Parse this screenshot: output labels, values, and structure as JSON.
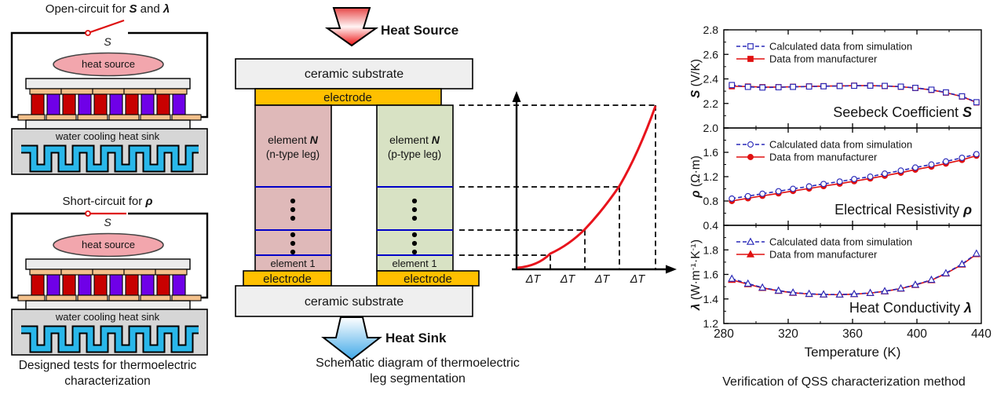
{
  "left_panel": {
    "test1_title": [
      "Open-circuit for ",
      "S",
      " and ",
      "λ"
    ],
    "test2_title": [
      "Short-circuit for ",
      "ρ"
    ],
    "switch_label": "S",
    "heat_source_label": "heat source",
    "heat_sink_label": "water cooling heat sink",
    "caption": [
      "Designed tests for thermoelectric",
      "characterization"
    ]
  },
  "middle_panel": {
    "heat_source_label": "Heat Source",
    "heat_sink_label": "Heat Sink",
    "ceramic_label": "ceramic substrate",
    "electrode_label": "electrode",
    "n_leg_label": [
      "element ",
      "N"
    ],
    "n_leg_sublabel": "(n-type leg)",
    "p_leg_label": [
      "element ",
      "N"
    ],
    "p_leg_sublabel": "(p-type leg)",
    "element1_label": "element 1",
    "delta_t_label": "ΔT",
    "caption": [
      "Schematic diagram of thermoelectric",
      "leg segmentation"
    ]
  },
  "right_panel": {
    "caption": "Verification of QSS characterization method",
    "ylabel_s": [
      "S",
      " (V/K)"
    ],
    "ylabel_rho": [
      "ρ",
      " (Ω·m)"
    ],
    "ylabel_lambda": [
      "λ",
      " (W·m",
      "-1",
      "·K",
      "-1",
      ")"
    ]
  },
  "colors": {
    "simulation_line": "#2929b8",
    "manufacturer_line": "#e01010",
    "electrode": "#ffc000",
    "n_leg": "#dfb9b9",
    "p_leg": "#d8e2c4",
    "segment_divider": "#0000c8",
    "te_red": "#c80000",
    "te_purple": "#6f00e8",
    "coolant": "#29b7ea",
    "heat_arrow": "#ee2222",
    "sink_arrow": "#3fa8e8",
    "profile_curve": "#e8131c"
  },
  "chart_data": [
    {
      "type": "line",
      "title": "Seebeck Coefficient S",
      "ylabel": "S (V/K)",
      "xlabel": "Temperature (K)",
      "xlim": [
        280,
        440
      ],
      "ylim": [
        2.0,
        2.8
      ],
      "xticks": [
        280,
        320,
        360,
        400,
        440
      ],
      "yticks": [
        2.0,
        2.2,
        2.4,
        2.6,
        2.8
      ],
      "grid": false,
      "legend_position": "top-left",
      "annotation": {
        "text": "Seebeck Coefficient ",
        "symbol": "S"
      },
      "x": [
        285,
        295,
        304,
        314,
        323,
        333,
        342,
        352,
        361,
        371,
        380,
        390,
        399,
        409,
        418,
        428,
        437
      ],
      "series": [
        {
          "name": "Calculated data from simulation",
          "color": "#2929b8",
          "style": "dashed",
          "marker": "square",
          "marker_fill": "open",
          "values": [
            2.35,
            2.335,
            2.33,
            2.332,
            2.335,
            2.338,
            2.34,
            2.342,
            2.344,
            2.345,
            2.343,
            2.337,
            2.327,
            2.312,
            2.29,
            2.258,
            2.21
          ]
        },
        {
          "name": "Data from manufacturer",
          "color": "#e01010",
          "style": "solid",
          "marker": "square",
          "marker_fill": "filled",
          "values": [
            2.34,
            2.338,
            2.333,
            2.333,
            2.336,
            2.339,
            2.341,
            2.343,
            2.345,
            2.345,
            2.342,
            2.336,
            2.326,
            2.31,
            2.288,
            2.256,
            2.208
          ]
        }
      ]
    },
    {
      "type": "line",
      "title": "Electrical Resistivity ρ",
      "ylabel": "ρ (Ω·m)",
      "xlabel": "Temperature (K)",
      "xlim": [
        280,
        440
      ],
      "ylim": [
        0.4,
        2.0
      ],
      "xticks": [
        280,
        320,
        360,
        400,
        440
      ],
      "yticks": [
        0.4,
        0.8,
        1.2,
        1.6,
        2.0
      ],
      "grid": false,
      "legend_position": "top-left",
      "annotation": {
        "text": "Electrical Resistivity ",
        "symbol": "ρ"
      },
      "x": [
        285,
        295,
        304,
        314,
        323,
        333,
        342,
        352,
        361,
        371,
        380,
        390,
        399,
        409,
        418,
        428,
        437
      ],
      "series": [
        {
          "name": "Calculated data from simulation",
          "color": "#2929b8",
          "style": "dashed",
          "marker": "circle",
          "marker_fill": "open",
          "values": [
            0.84,
            0.88,
            0.92,
            0.96,
            1.0,
            1.04,
            1.08,
            1.12,
            1.16,
            1.2,
            1.25,
            1.3,
            1.35,
            1.4,
            1.45,
            1.51,
            1.57
          ]
        },
        {
          "name": "Data from manufacturer",
          "color": "#e01010",
          "style": "solid",
          "marker": "circle",
          "marker_fill": "filled",
          "values": [
            0.8,
            0.845,
            0.885,
            0.925,
            0.965,
            1.005,
            1.045,
            1.085,
            1.125,
            1.17,
            1.215,
            1.265,
            1.315,
            1.365,
            1.415,
            1.475,
            1.545
          ]
        }
      ]
    },
    {
      "type": "line",
      "title": "Heat Conductivity λ",
      "ylabel": "λ (W·m-1·K-1)",
      "xlabel": "Temperature (K)",
      "xlim": [
        280,
        440
      ],
      "ylim": [
        1.2,
        2.0
      ],
      "xticks": [
        280,
        320,
        360,
        400,
        440
      ],
      "yticks": [
        1.2,
        1.4,
        1.6,
        1.8
      ],
      "grid": false,
      "legend_position": "top-left",
      "annotation": {
        "text": "Heat Conductivity ",
        "symbol": "λ"
      },
      "x": [
        285,
        295,
        304,
        314,
        323,
        333,
        342,
        352,
        361,
        371,
        380,
        390,
        399,
        409,
        418,
        428,
        437
      ],
      "series": [
        {
          "name": "Calculated data from simulation",
          "color": "#2929b8",
          "style": "dashed",
          "marker": "triangle",
          "marker_fill": "open",
          "values": [
            1.565,
            1.525,
            1.493,
            1.468,
            1.452,
            1.442,
            1.437,
            1.436,
            1.44,
            1.449,
            1.463,
            1.486,
            1.516,
            1.556,
            1.61,
            1.684,
            1.77
          ]
        },
        {
          "name": "Data from manufacturer",
          "color": "#e01010",
          "style": "solid",
          "marker": "triangle",
          "marker_fill": "filled",
          "values": [
            1.555,
            1.52,
            1.49,
            1.466,
            1.45,
            1.44,
            1.436,
            1.435,
            1.439,
            1.448,
            1.462,
            1.484,
            1.514,
            1.553,
            1.607,
            1.68,
            1.765
          ]
        }
      ]
    }
  ]
}
